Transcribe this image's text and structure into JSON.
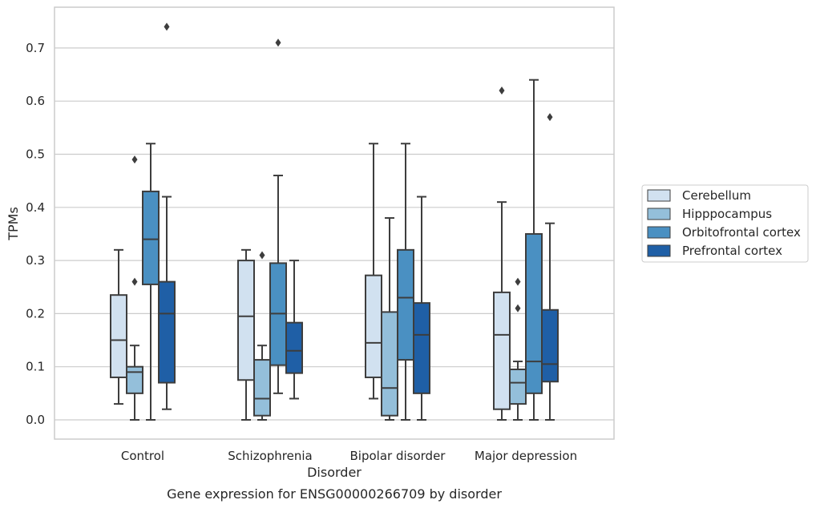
{
  "chart_data": {
    "type": "box",
    "caption": "Gene expression for ENSG00000266709 by disorder",
    "xlabel": "Disorder",
    "ylabel": "TPMs",
    "ylim": [
      -0.035,
      0.77
    ],
    "yticks": [
      0.0,
      0.1,
      0.2,
      0.3,
      0.4,
      0.5,
      0.6,
      0.7
    ],
    "ytick_labels": [
      "0.0",
      "0.1",
      "0.2",
      "0.3",
      "0.4",
      "0.5",
      "0.6",
      "0.7"
    ],
    "categories": [
      "Control",
      "Schizophrenia",
      "Bipolar disorder",
      "Major depression"
    ],
    "grid": "horizontal",
    "legend_position": "right",
    "series": [
      {
        "name": "Cerebellum",
        "color": "#d1e1f0",
        "boxes": [
          {
            "whisker_low": 0.03,
            "q1": 0.08,
            "median": 0.15,
            "q3": 0.235,
            "whisker_high": 0.32,
            "outliers": []
          },
          {
            "whisker_low": 0.0,
            "q1": 0.075,
            "median": 0.195,
            "q3": 0.3,
            "whisker_high": 0.32,
            "outliers": []
          },
          {
            "whisker_low": 0.04,
            "q1": 0.08,
            "median": 0.145,
            "q3": 0.272,
            "whisker_high": 0.52,
            "outliers": []
          },
          {
            "whisker_low": 0.0,
            "q1": 0.02,
            "median": 0.16,
            "q3": 0.24,
            "whisker_high": 0.41,
            "outliers": [
              0.62
            ]
          }
        ]
      },
      {
        "name": "Hipppocampus",
        "color": "#94bfda",
        "boxes": [
          {
            "whisker_low": 0.0,
            "q1": 0.05,
            "median": 0.09,
            "q3": 0.1,
            "whisker_high": 0.14,
            "outliers": [
              0.26,
              0.49
            ]
          },
          {
            "whisker_low": 0.0,
            "q1": 0.008,
            "median": 0.04,
            "q3": 0.113,
            "whisker_high": 0.14,
            "outliers": [
              0.31
            ]
          },
          {
            "whisker_low": 0.0,
            "q1": 0.008,
            "median": 0.06,
            "q3": 0.203,
            "whisker_high": 0.38,
            "outliers": []
          },
          {
            "whisker_low": 0.0,
            "q1": 0.03,
            "median": 0.07,
            "q3": 0.095,
            "whisker_high": 0.11,
            "outliers": [
              0.21,
              0.26
            ]
          }
        ]
      },
      {
        "name": "Orbitofrontal cortex",
        "color": "#4a90c2",
        "boxes": [
          {
            "whisker_low": 0.0,
            "q1": 0.255,
            "median": 0.34,
            "q3": 0.43,
            "whisker_high": 0.52,
            "outliers": []
          },
          {
            "whisker_low": 0.05,
            "q1": 0.103,
            "median": 0.2,
            "q3": 0.295,
            "whisker_high": 0.46,
            "outliers": [
              0.71
            ]
          },
          {
            "whisker_low": 0.0,
            "q1": 0.113,
            "median": 0.23,
            "q3": 0.32,
            "whisker_high": 0.52,
            "outliers": []
          },
          {
            "whisker_low": 0.0,
            "q1": 0.05,
            "median": 0.11,
            "q3": 0.35,
            "whisker_high": 0.64,
            "outliers": []
          }
        ]
      },
      {
        "name": "Prefrontal cortex",
        "color": "#1f5fa6",
        "boxes": [
          {
            "whisker_low": 0.02,
            "q1": 0.07,
            "median": 0.2,
            "q3": 0.26,
            "whisker_high": 0.42,
            "outliers": [
              0.74
            ]
          },
          {
            "whisker_low": 0.04,
            "q1": 0.088,
            "median": 0.13,
            "q3": 0.183,
            "whisker_high": 0.3,
            "outliers": []
          },
          {
            "whisker_low": 0.0,
            "q1": 0.05,
            "median": 0.16,
            "q3": 0.22,
            "whisker_high": 0.42,
            "outliers": []
          },
          {
            "whisker_low": 0.0,
            "q1": 0.072,
            "median": 0.105,
            "q3": 0.207,
            "whisker_high": 0.37,
            "outliers": [
              0.57
            ]
          }
        ]
      }
    ]
  }
}
